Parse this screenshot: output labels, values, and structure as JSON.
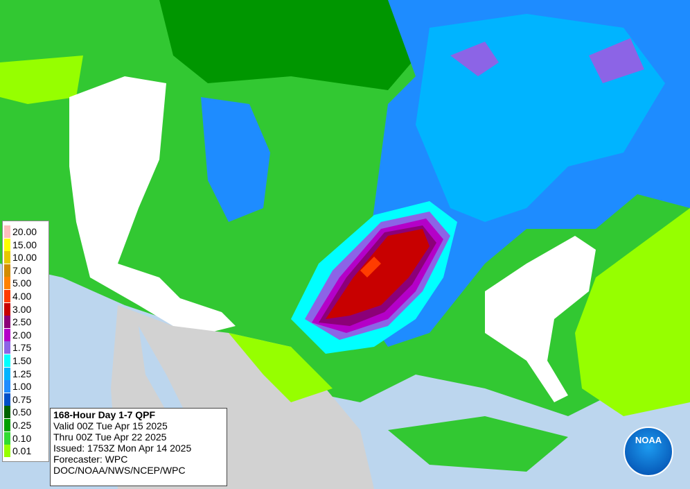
{
  "legend": {
    "items": [
      {
        "label": "20.00",
        "color": "#ffbebe"
      },
      {
        "label": "15.00",
        "color": "#ffff00"
      },
      {
        "label": "10.00",
        "color": "#e6c800"
      },
      {
        "label": "7.00",
        "color": "#d28c00"
      },
      {
        "label": "5.00",
        "color": "#ff8200"
      },
      {
        "label": "4.00",
        "color": "#ff3c00"
      },
      {
        "label": "3.00",
        "color": "#c80000"
      },
      {
        "label": "2.50",
        "color": "#8c0078"
      },
      {
        "label": "2.00",
        "color": "#b400c8"
      },
      {
        "label": "1.75",
        "color": "#8c64e6"
      },
      {
        "label": "1.50",
        "color": "#00ffff"
      },
      {
        "label": "1.25",
        "color": "#00b4ff"
      },
      {
        "label": "1.00",
        "color": "#1e8cff"
      },
      {
        "label": "0.75",
        "color": "#0050c8"
      },
      {
        "label": "0.50",
        "color": "#006400"
      },
      {
        "label": "0.25",
        "color": "#00a000"
      },
      {
        "label": "0.10",
        "color": "#32dc32"
      },
      {
        "label": "0.01",
        "color": "#96ff00"
      }
    ]
  },
  "info": {
    "title": "168-Hour Day 1-7 QPF",
    "lines": [
      "Valid 00Z Tue Apr 15 2025",
      "Thru 00Z Tue Apr 22 2025",
      "Issued: 1753Z Mon Apr 14 2025",
      "Forecaster: WPC",
      "DOC/NOAA/NWS/NCEP/WPC"
    ]
  },
  "logo": "NOAA"
}
